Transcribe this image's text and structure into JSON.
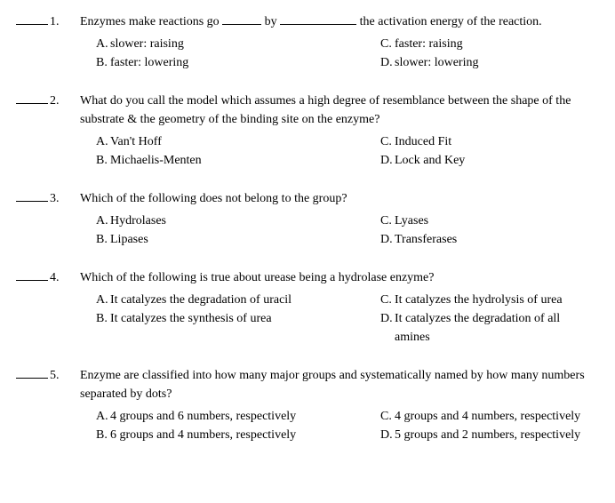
{
  "questions": [
    {
      "num": "1.",
      "text_pre": "Enzymes make reactions go ",
      "text_mid": " by ",
      "text_post": " the activation energy of the reaction.",
      "has_blanks": true,
      "choices": {
        "A": "slower: raising",
        "B": "faster: lowering",
        "C": "faster: raising",
        "D": "slower: lowering"
      }
    },
    {
      "num": "2.",
      "text": "What do you call the model which assumes a high degree of resemblance between the shape of the substrate & the geometry of the binding site on the enzyme?",
      "choices": {
        "A": "Van't Hoff",
        "B": "Michaelis-Menten",
        "C": "Induced Fit",
        "D": "Lock and Key"
      }
    },
    {
      "num": "3.",
      "text": "Which of the following does not belong to the group?",
      "choices": {
        "A": "Hydrolases",
        "B": "Lipases",
        "C": "Lyases",
        "D": "Transferases"
      }
    },
    {
      "num": "4.",
      "text": "Which of the following is true about urease being a hydrolase enzyme?",
      "choices": {
        "A": "It catalyzes the degradation of uracil",
        "B": "It catalyzes the synthesis of urea",
        "C": "It catalyzes the hydrolysis of urea",
        "D": "It catalyzes the degradation of all amines"
      }
    },
    {
      "num": "5.",
      "text": "Enzyme are classified into how many major groups and systematically named by how many numbers separated by dots?",
      "choices": {
        "A": "4 groups and 6 numbers, respectively",
        "B": "6 groups and 4 numbers, respectively",
        "C": "4 groups and 4 numbers, respectively",
        "D": "5 groups and 2 numbers, respectively"
      }
    }
  ],
  "letters": {
    "A": "A.",
    "B": "B.",
    "C": "C.",
    "D": "D."
  }
}
